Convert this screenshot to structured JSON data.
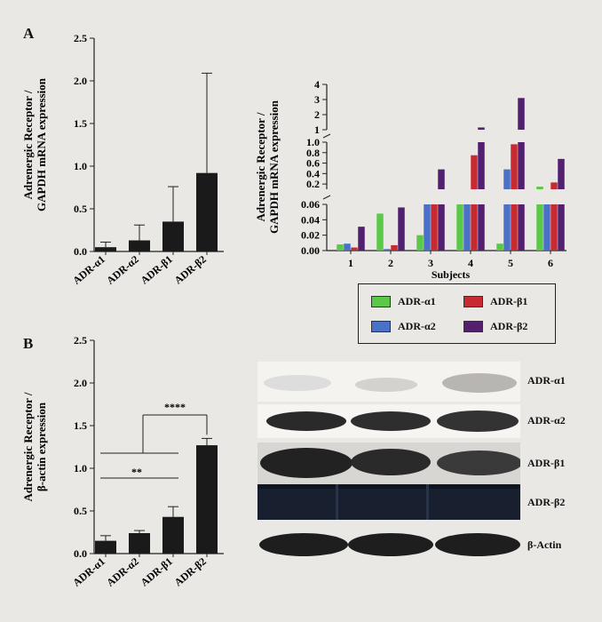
{
  "panels": {
    "a_letter": "A",
    "b_letter": "B"
  },
  "chart_data": [
    {
      "id": "A-left",
      "type": "bar",
      "categories": [
        "ADR-α1",
        "ADR-α2",
        "ADR-β1",
        "ADR-β2"
      ],
      "values": [
        0.05,
        0.13,
        0.35,
        0.92
      ],
      "errors": [
        0.06,
        0.18,
        0.41,
        1.17
      ],
      "ylabel_line1": "Adrenergic Receptor /",
      "ylabel_line2": "GAPDH mRNA expression",
      "ylim": [
        0,
        2.5
      ],
      "yticks": [
        "0.0",
        "0.5",
        "1.0",
        "1.5",
        "2.0",
        "2.5"
      ],
      "bar_color": "#1a1a1a"
    },
    {
      "id": "A-right",
      "type": "bar",
      "xlabel": "Subjects",
      "categories": [
        "1",
        "2",
        "3",
        "4",
        "5",
        "6"
      ],
      "ylabel_line1": "Adrenergic Receptor /",
      "ylabel_line2": "GAPDH mRNA expression",
      "segments": {
        "low": {
          "range": [
            0,
            0.06
          ],
          "ticks": [
            "0.00",
            "0.02",
            "0.04",
            "0.06"
          ]
        },
        "mid": {
          "range": [
            0.1,
            1.0
          ],
          "ticks": [
            "0.2",
            "0.4",
            "0.6",
            "0.8",
            "1.0"
          ]
        },
        "high": {
          "range": [
            1,
            4
          ],
          "ticks": [
            "1",
            "2",
            "3",
            "4"
          ]
        }
      },
      "series": [
        {
          "name": "ADR-α1",
          "color": "#5cc84a",
          "values": [
            0.008,
            0.048,
            0.02,
            0.1,
            0.009,
            0.15
          ]
        },
        {
          "name": "ADR-α2",
          "color": "#4a70c8",
          "values": [
            0.009,
            0.002,
            0.1,
            0.1,
            0.48,
            0.1
          ]
        },
        {
          "name": "ADR-β1",
          "color": "#c82a32",
          "values": [
            0.004,
            0.007,
            0.1,
            0.75,
            0.96,
            0.23
          ]
        },
        {
          "name": "ADR-β2",
          "color": "#52206e",
          "values": [
            0.031,
            0.056,
            0.48,
            1.15,
            3.1,
            0.68
          ]
        }
      ]
    },
    {
      "id": "B-left",
      "type": "bar",
      "categories": [
        "ADR-α1",
        "ADR-α2",
        "ADR-β1",
        "ADR-β2"
      ],
      "values": [
        0.15,
        0.24,
        0.43,
        1.27
      ],
      "errors": [
        0.06,
        0.03,
        0.12,
        0.08
      ],
      "ylabel_line1": "Adrenergic Receptor /",
      "ylabel_line2": "β-actin expression",
      "ylim": [
        0,
        2.5
      ],
      "yticks": [
        "0.0",
        "0.5",
        "1.0",
        "1.5",
        "2.0",
        "2.5"
      ],
      "bar_color": "#1a1a1a",
      "significance": [
        {
          "label": "**",
          "between": [
            "ADR-α1",
            "ADR-β1"
          ]
        },
        {
          "label": "****",
          "between": [
            "ADR-α1+ADR-β1",
            "ADR-β2"
          ]
        }
      ]
    }
  ],
  "legend": {
    "items": [
      {
        "name": "ADR-α1",
        "color": "#5cc84a"
      },
      {
        "name": "ADR-β1",
        "color": "#c82a32"
      },
      {
        "name": "ADR-α2",
        "color": "#4a70c8"
      },
      {
        "name": "ADR-β2",
        "color": "#52206e"
      }
    ]
  },
  "blot": {
    "labels": [
      "ADR-α1",
      "ADR-α2",
      "ADR-β1",
      "ADR-β2",
      "β-Actin"
    ]
  }
}
